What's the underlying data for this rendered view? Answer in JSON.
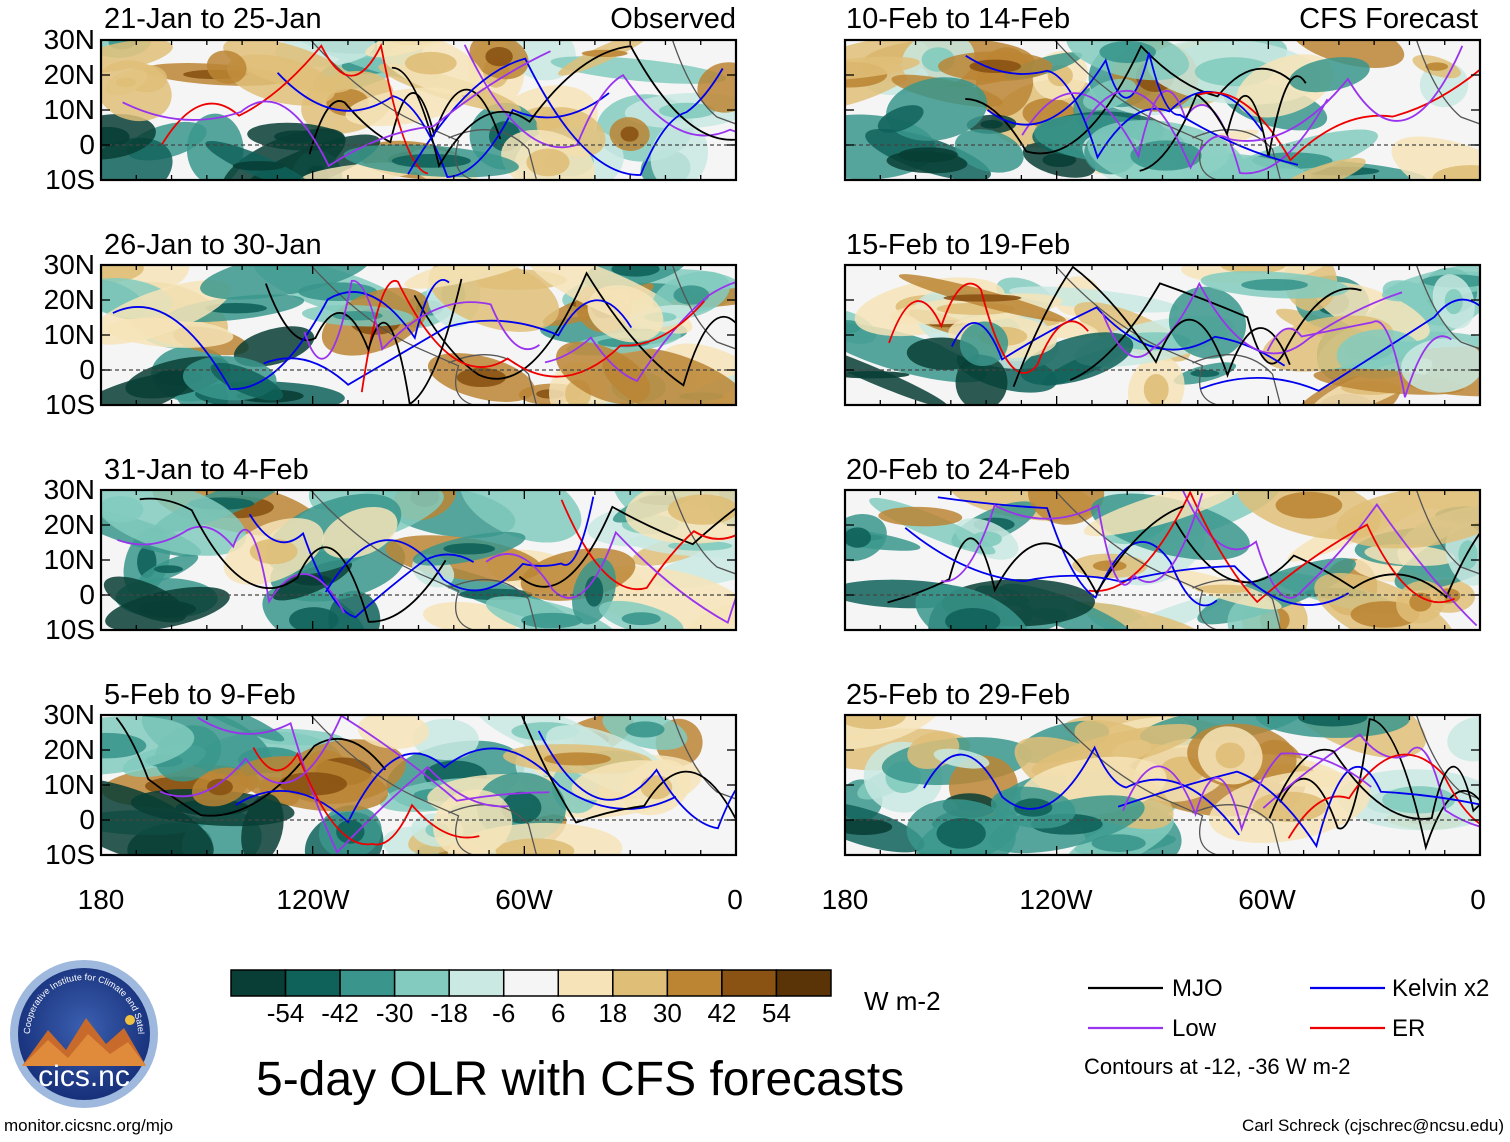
{
  "chart_data": {
    "type": "heatmap",
    "title": "5-day OLR with CFS forecasts",
    "units": "W m-2",
    "latitude_ticks": [
      "30N",
      "20N",
      "10N",
      "0",
      "10S"
    ],
    "longitude_ticks": [
      "180",
      "120W",
      "60W",
      "0"
    ],
    "lat_range": [
      -10,
      30
    ],
    "lon_range": [
      -180,
      0
    ],
    "columns": [
      {
        "label": "Observed",
        "panels": [
          "21-Jan to 25-Jan",
          "26-Jan to 30-Jan",
          "31-Jan to 4-Feb",
          "5-Feb to 9-Feb"
        ]
      },
      {
        "label": "CFS Forecast",
        "panels": [
          "10-Feb to 14-Feb",
          "15-Feb to 19-Feb",
          "20-Feb to 24-Feb",
          "25-Feb to 29-Feb"
        ]
      }
    ],
    "colorbar": {
      "tick_labels": [
        "-54",
        "-42",
        "-30",
        "-18",
        "-6",
        "6",
        "18",
        "30",
        "42",
        "54"
      ],
      "colors": [
        "#083e35",
        "#0f625a",
        "#3a968c",
        "#82cbbe",
        "#c9e9e2",
        "#f5f5f5",
        "#f6e4b8",
        "#dfbe78",
        "#bb8534",
        "#8a5213",
        "#5a3406"
      ]
    },
    "legend": [
      {
        "name": "MJO",
        "color": "#000000"
      },
      {
        "name": "Kelvin x2",
        "color": "#0000ee"
      },
      {
        "name": "Low",
        "color": "#9933ee"
      },
      {
        "name": "ER",
        "color": "#ee0000"
      }
    ],
    "contour_note": "Contours at -12, -36 W m-2"
  },
  "footer": {
    "left": "monitor.cicsnc.org/mjo",
    "right": "Carl Schreck (cjschrec@ncsu.edu)"
  },
  "logo": {
    "text": "cics.nc",
    "ring_text": "Cooperative Institute for Climate and Satellites"
  }
}
